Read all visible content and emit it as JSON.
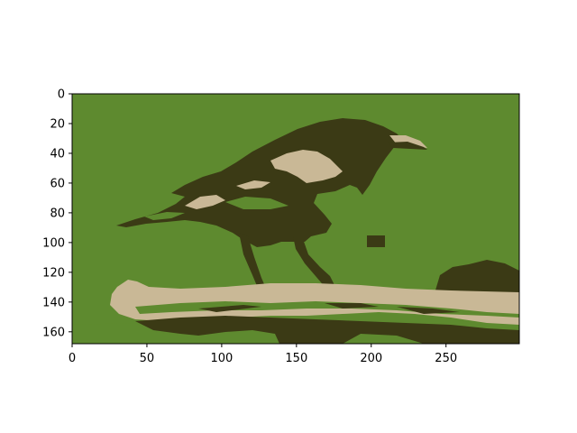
{
  "chart_data": {
    "type": "image",
    "title": "",
    "xlabel": "",
    "ylabel": "",
    "xlim": [
      0,
      299
    ],
    "ylim": [
      168,
      0
    ],
    "x_ticks": [
      0,
      50,
      100,
      150,
      200,
      250
    ],
    "y_ticks": [
      0,
      20,
      40,
      60,
      80,
      100,
      120,
      140,
      160
    ],
    "x_tick_labels": [
      "0",
      "50",
      "100",
      "150",
      "200",
      "250"
    ],
    "y_tick_labels": [
      "0",
      "20",
      "40",
      "60",
      "80",
      "100",
      "120",
      "140",
      "160"
    ],
    "grid": false,
    "palette": {
      "background_green": "#5e8a2f",
      "dark_olive": "#3b3a15",
      "light_tan": "#c9b896"
    }
  }
}
